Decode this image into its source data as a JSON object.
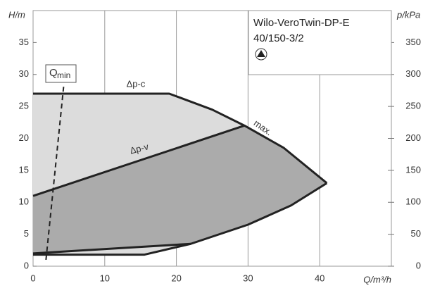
{
  "chart_data": {
    "type": "pump-curve",
    "title": "Wilo-VeroTwin-DP-E",
    "subtitle": "40/150-3/2",
    "y_label": "H/m",
    "y2_label": "p/kPa",
    "x_label": "Q/m³/h",
    "xlim": [
      0,
      50
    ],
    "xticks": [
      0,
      10,
      20,
      30,
      40
    ],
    "ylim": [
      0,
      40
    ],
    "yticks": [
      0,
      5,
      10,
      15,
      20,
      25,
      30,
      35
    ],
    "y2lim": [
      0,
      400
    ],
    "y2ticks": [
      0,
      50,
      100,
      150,
      200,
      250,
      300,
      350
    ],
    "grid": true,
    "series": [
      {
        "x": [
          0,
          19,
          25,
          29.5,
          35,
          41
        ],
        "values": [
          27,
          27,
          24.5,
          22,
          18.5,
          13
        ],
        "color": "#dcdcdc"
      },
      {
        "x": [
          0,
          15.5,
          22,
          30,
          36,
          41
        ],
        "values": [
          1.8,
          1.8,
          3.5,
          6.5,
          9.5,
          13
        ],
        "color": "#dcdcdc"
      },
      {
        "x": [
          0,
          29.5
        ],
        "values": [
          11,
          22
        ],
        "color": "#ababab"
      },
      {
        "x": [
          0,
          22
        ],
        "values": [
          2,
          3.5
        ],
        "color": "#ababab"
      }
    ],
    "qmin_line": {
      "x": [
        1.8,
        4.3
      ],
      "values": [
        1,
        28.5
      ]
    },
    "annotations": {
      "dpc": "Δp-c",
      "dpv": "Δp-v",
      "max": "max.",
      "qmin": "Q",
      "qmin_sub": "min"
    }
  }
}
